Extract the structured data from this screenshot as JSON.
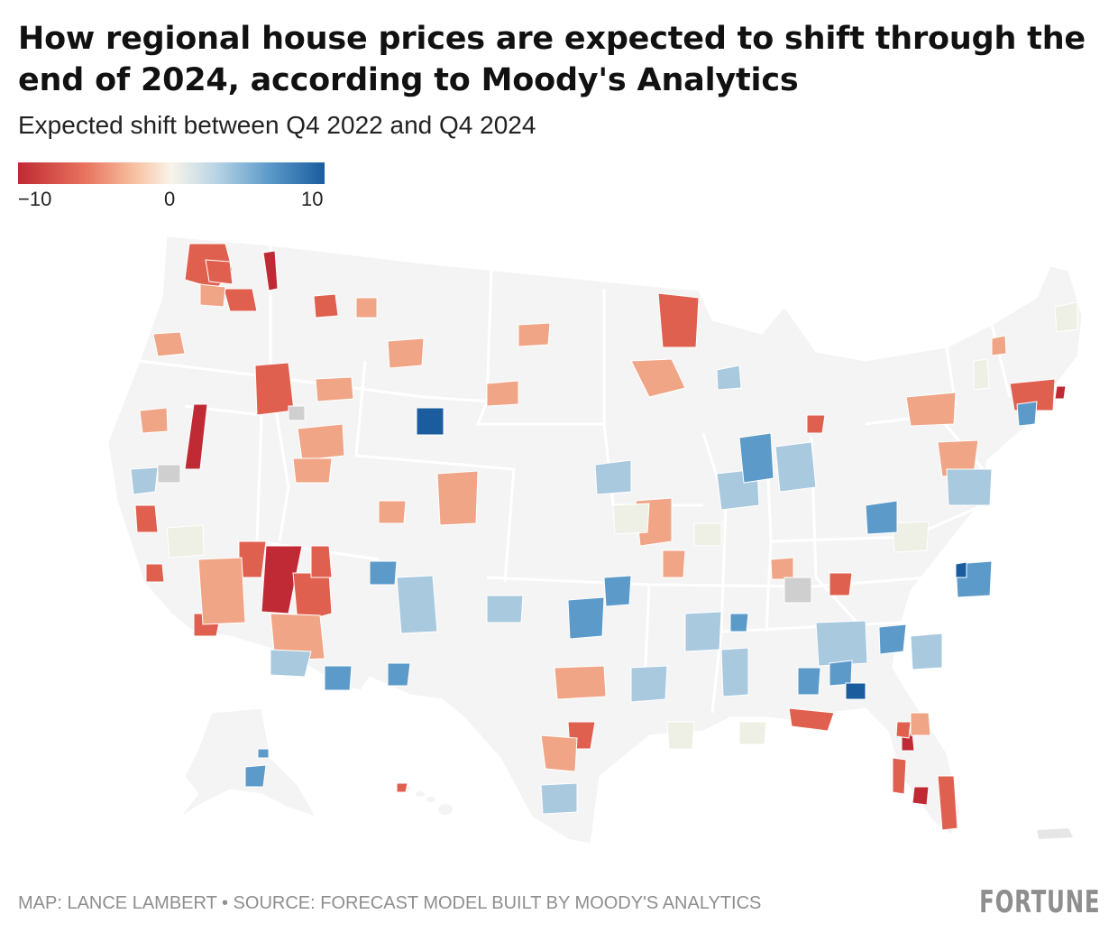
{
  "title": "How regional house prices are expected to shift through the end of 2024, according to Moody's Analytics",
  "subtitle": "Expected shift between Q4 2022 and Q4 2024",
  "legend": {
    "min_label": "−10",
    "mid_label": "0",
    "max_label": "10",
    "colors": {
      "strong_decline": "#c02a34",
      "decline": "#e8735f",
      "mild_decline": "#f7c1a2",
      "neutral": "#f8f4e8",
      "mild_rise": "#bcd6e6",
      "rise": "#5b9ac9",
      "strong_rise": "#1a5c9e",
      "no_data": "#cfcfcf",
      "land": "#f4f4f4"
    }
  },
  "footer": {
    "credit": "MAP: LANCE LAMBERT • SOURCE: FORECAST MODEL BUILT BY MOODY'S ANALYTICS",
    "logo": "FORTUNE"
  }
}
